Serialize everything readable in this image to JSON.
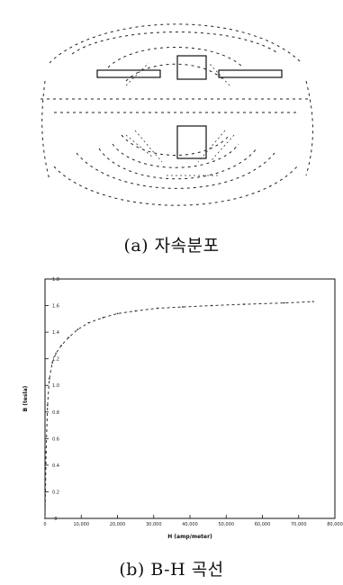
{
  "figure_a": {
    "caption": "(a) 자속분포"
  },
  "figure_b": {
    "caption": "(b) B-H 곡선"
  },
  "chart_data": {
    "type": "line",
    "xlabel": "H (amp/meter)",
    "ylabel": "B (tesla)",
    "xlim": [
      0,
      80000
    ],
    "ylim": [
      0,
      1.8
    ],
    "x_ticks": [
      0,
      10000,
      20000,
      30000,
      40000,
      50000,
      60000,
      70000,
      80000
    ],
    "x_tick_labels": [
      "0",
      "10,000",
      "20,000",
      "30,000",
      "40,000",
      "50,000",
      "60,000",
      "70,000",
      "80,000"
    ],
    "y_ticks": [
      0,
      0.2,
      0.4,
      0.6,
      0.8,
      1.0,
      1.2,
      1.4,
      1.6,
      1.8
    ],
    "y_tick_labels": [
      "0",
      "0.2",
      "0.4",
      "0.6",
      "0.8",
      "1.0",
      "1.2",
      "1.4",
      "1.6",
      "1.8"
    ],
    "grid": false,
    "series": [
      {
        "x": [
          0,
          300,
          700,
          1200,
          2000,
          3000,
          4500,
          6500,
          9000,
          12000,
          16000,
          20000,
          25000,
          31000,
          38000,
          46000,
          55000,
          66000,
          74000
        ],
        "y": [
          0,
          0.5,
          0.85,
          1.05,
          1.17,
          1.24,
          1.3,
          1.36,
          1.42,
          1.47,
          1.51,
          1.54,
          1.56,
          1.58,
          1.59,
          1.6,
          1.61,
          1.62,
          1.63
        ],
        "color": "#333333"
      }
    ]
  }
}
